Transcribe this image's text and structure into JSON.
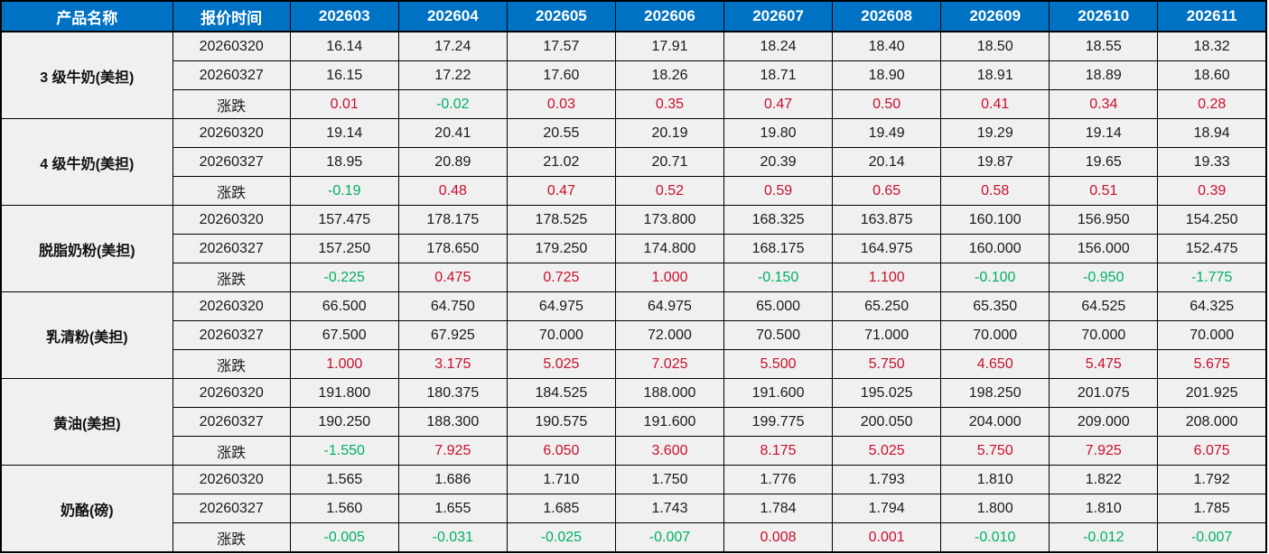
{
  "table": {
    "header": {
      "product_col": "产品名称",
      "time_col": "报价时间",
      "contracts": [
        "202603",
        "202604",
        "202605",
        "202606",
        "202607",
        "202608",
        "202609",
        "202610",
        "202611"
      ]
    },
    "change_label": "涨跌",
    "products": [
      {
        "name": "3 级牛奶(美担)",
        "rows": [
          {
            "time": "20260320",
            "type": "price",
            "values": [
              "16.14",
              "17.24",
              "17.57",
              "17.91",
              "18.24",
              "18.40",
              "18.50",
              "18.55",
              "18.32"
            ]
          },
          {
            "time": "20260327",
            "type": "price",
            "values": [
              "16.15",
              "17.22",
              "17.60",
              "18.26",
              "18.71",
              "18.90",
              "18.91",
              "18.89",
              "18.60"
            ]
          },
          {
            "time": "涨跌",
            "type": "change",
            "values": [
              "0.01",
              "-0.02",
              "0.03",
              "0.35",
              "0.47",
              "0.50",
              "0.41",
              "0.34",
              "0.28"
            ]
          }
        ]
      },
      {
        "name": "4 级牛奶(美担)",
        "rows": [
          {
            "time": "20260320",
            "type": "price",
            "values": [
              "19.14",
              "20.41",
              "20.55",
              "20.19",
              "19.80",
              "19.49",
              "19.29",
              "19.14",
              "18.94"
            ]
          },
          {
            "time": "20260327",
            "type": "price",
            "values": [
              "18.95",
              "20.89",
              "21.02",
              "20.71",
              "20.39",
              "20.14",
              "19.87",
              "19.65",
              "19.33"
            ]
          },
          {
            "time": "涨跌",
            "type": "change",
            "values": [
              "-0.19",
              "0.48",
              "0.47",
              "0.52",
              "0.59",
              "0.65",
              "0.58",
              "0.51",
              "0.39"
            ]
          }
        ]
      },
      {
        "name": "脱脂奶粉(美担)",
        "rows": [
          {
            "time": "20260320",
            "type": "price",
            "values": [
              "157.475",
              "178.175",
              "178.525",
              "173.800",
              "168.325",
              "163.875",
              "160.100",
              "156.950",
              "154.250"
            ]
          },
          {
            "time": "20260327",
            "type": "price",
            "values": [
              "157.250",
              "178.650",
              "179.250",
              "174.800",
              "168.175",
              "164.975",
              "160.000",
              "156.000",
              "152.475"
            ]
          },
          {
            "time": "涨跌",
            "type": "change",
            "values": [
              "-0.225",
              "0.475",
              "0.725",
              "1.000",
              "-0.150",
              "1.100",
              "-0.100",
              "-0.950",
              "-1.775"
            ]
          }
        ]
      },
      {
        "name": "乳清粉(美担)",
        "rows": [
          {
            "time": "20260320",
            "type": "price",
            "values": [
              "66.500",
              "64.750",
              "64.975",
              "64.975",
              "65.000",
              "65.250",
              "65.350",
              "64.525",
              "64.325"
            ]
          },
          {
            "time": "20260327",
            "type": "price",
            "values": [
              "67.500",
              "67.925",
              "70.000",
              "72.000",
              "70.500",
              "71.000",
              "70.000",
              "70.000",
              "70.000"
            ]
          },
          {
            "time": "涨跌",
            "type": "change",
            "values": [
              "1.000",
              "3.175",
              "5.025",
              "7.025",
              "5.500",
              "5.750",
              "4.650",
              "5.475",
              "5.675"
            ]
          }
        ]
      },
      {
        "name": "黄油(美担)",
        "rows": [
          {
            "time": "20260320",
            "type": "price",
            "values": [
              "191.800",
              "180.375",
              "184.525",
              "188.000",
              "191.600",
              "195.025",
              "198.250",
              "201.075",
              "201.925"
            ]
          },
          {
            "time": "20260327",
            "type": "price",
            "values": [
              "190.250",
              "188.300",
              "190.575",
              "191.600",
              "199.775",
              "200.050",
              "204.000",
              "209.000",
              "208.000"
            ]
          },
          {
            "time": "涨跌",
            "type": "change",
            "values": [
              "-1.550",
              "7.925",
              "6.050",
              "3.600",
              "8.175",
              "5.025",
              "5.750",
              "7.925",
              "6.075"
            ]
          }
        ]
      },
      {
        "name": "奶酪(磅)",
        "rows": [
          {
            "time": "20260320",
            "type": "price",
            "values": [
              "1.565",
              "1.686",
              "1.710",
              "1.750",
              "1.776",
              "1.793",
              "1.810",
              "1.822",
              "1.792"
            ]
          },
          {
            "time": "20260327",
            "type": "price",
            "values": [
              "1.560",
              "1.655",
              "1.685",
              "1.743",
              "1.784",
              "1.794",
              "1.800",
              "1.810",
              "1.785"
            ]
          },
          {
            "time": "涨跌",
            "type": "change",
            "values": [
              "-0.005",
              "-0.031",
              "-0.025",
              "-0.007",
              "0.008",
              "0.001",
              "-0.010",
              "-0.012",
              "-0.007"
            ]
          }
        ]
      }
    ],
    "colors": {
      "header_bg": "#0072C4",
      "cell_bg": "#F0F0F0",
      "up_red": "#C8102E",
      "down_green": "#00B161"
    },
    "layout": {
      "product_col_width": 190,
      "time_col_width": 130
    }
  }
}
